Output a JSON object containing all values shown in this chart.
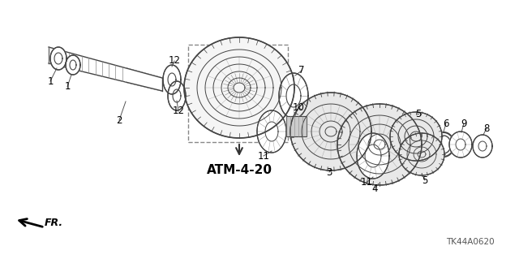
{
  "bg_color": "#ffffff",
  "part_label": "ATM-4-20",
  "part_number": "TK44A0620",
  "line_color": "#444444",
  "dashed_color": "#888888"
}
